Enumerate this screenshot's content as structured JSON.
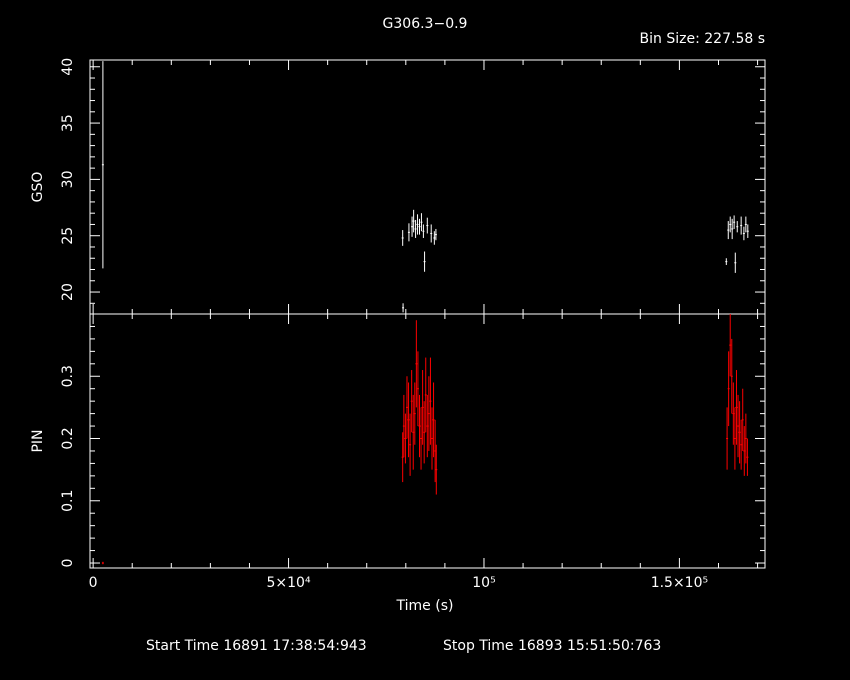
{
  "chart_data": [
    {
      "type": "scatter",
      "title": "G306.3−0.9",
      "subtitle": "Bin Size: 227.58 s",
      "ylabel": "GSO",
      "xlim": [
        -800,
        171900
      ],
      "ylim": [
        18.05,
        40.6
      ],
      "xticks": [
        0,
        {
          "value": 50000,
          "label": "5×10⁴"
        },
        {
          "value": 100000,
          "label": "10⁵"
        },
        {
          "value": 150000,
          "label": "1.5×10⁵"
        }
      ],
      "yticks": [
        20,
        25,
        30,
        35,
        40
      ],
      "series": [
        {
          "color": "#ffffff",
          "x": [
            2500,
            79200,
            79300,
            80800,
            81600,
            82000,
            82500,
            83000,
            83500,
            84000,
            84500,
            84800,
            85500,
            86500,
            87300,
            87700,
            162000,
            162500,
            163000,
            163500,
            164000,
            164300,
            164800,
            165800,
            166500,
            167000,
            167500
          ],
          "values": [
            31.3,
            24.8,
            18.6,
            25.3,
            25.8,
            26.3,
            25.6,
            26.0,
            25.8,
            26.2,
            25.4,
            22.7,
            25.9,
            25.2,
            24.8,
            25.1,
            22.7,
            25.5,
            26.0,
            25.6,
            26.2,
            22.6,
            25.8,
            25.9,
            25.2,
            26.0,
            25.4
          ],
          "errors": [
            9.2,
            0.7,
            0.4,
            0.8,
            0.9,
            1.0,
            0.8,
            0.9,
            0.7,
            0.8,
            0.6,
            0.9,
            0.7,
            0.8,
            0.6,
            0.5,
            0.3,
            0.8,
            0.7,
            0.9,
            0.6,
            0.9,
            0.5,
            0.8,
            0.6,
            0.7,
            0.6
          ]
        }
      ]
    },
    {
      "type": "scatter",
      "ylabel": "PIN",
      "xlabel": "Time (s)",
      "annotations": [
        "Start Time 16891 17:38:54:943",
        "Stop Time 16893 15:51:50:763"
      ],
      "xlim": [
        -800,
        171900
      ],
      "ylim": [
        -0.008,
        0.4
      ],
      "xticks": [
        0,
        {
          "value": 50000,
          "label": "5×10⁴"
        },
        {
          "value": 100000,
          "label": "10⁵"
        },
        {
          "value": 150000,
          "label": "1.5×10⁵"
        }
      ],
      "yticks": [
        0,
        0.1,
        0.2,
        0.3
      ],
      "series": [
        {
          "color": "#ff0000",
          "x": [
            2500,
            79200,
            79500,
            79900,
            80300,
            80700,
            81100,
            81500,
            81900,
            82300,
            82700,
            83100,
            83500,
            83900,
            84300,
            84700,
            85100,
            85500,
            85900,
            86300,
            86700,
            87100,
            87500,
            87800,
            162200,
            162600,
            163000,
            163400,
            163800,
            164200,
            164600,
            165000,
            165400,
            165800,
            166200,
            166600,
            167000,
            167400
          ],
          "values": [
            0.0,
            0.17,
            0.22,
            0.2,
            0.25,
            0.23,
            0.19,
            0.26,
            0.21,
            0.24,
            0.32,
            0.28,
            0.22,
            0.2,
            0.25,
            0.21,
            0.27,
            0.22,
            0.24,
            0.26,
            0.2,
            0.23,
            0.18,
            0.15,
            0.2,
            0.28,
            0.35,
            0.3,
            0.24,
            0.2,
            0.25,
            0.22,
            0.21,
            0.19,
            0.23,
            0.18,
            0.2,
            0.17
          ],
          "errors": [
            0.002,
            0.04,
            0.05,
            0.04,
            0.05,
            0.06,
            0.05,
            0.05,
            0.06,
            0.05,
            0.07,
            0.06,
            0.05,
            0.05,
            0.06,
            0.05,
            0.06,
            0.05,
            0.06,
            0.07,
            0.05,
            0.06,
            0.05,
            0.04,
            0.05,
            0.06,
            0.05,
            0.06,
            0.05,
            0.05,
            0.06,
            0.05,
            0.05,
            0.04,
            0.05,
            0.04,
            0.04,
            0.03
          ]
        }
      ]
    }
  ]
}
